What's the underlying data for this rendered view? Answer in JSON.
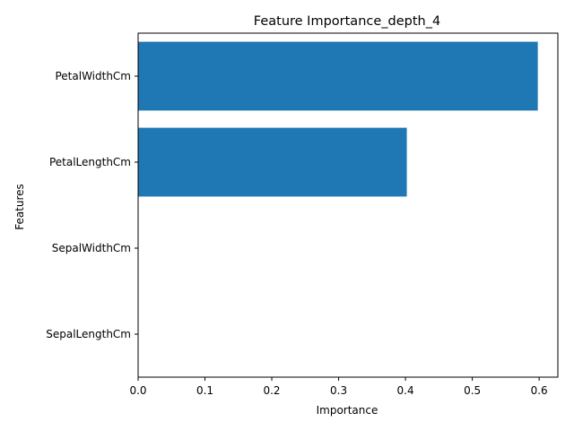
{
  "chart_data": {
    "type": "bar",
    "orientation": "horizontal",
    "title": "Feature Importance_depth_4",
    "xlabel": "Importance",
    "ylabel": "Features",
    "categories": [
      "SepalLengthCm",
      "SepalWidthCm",
      "PetalLengthCm",
      "PetalWidthCm"
    ],
    "values": [
      0.0,
      0.0,
      0.402,
      0.598
    ],
    "xlim": [
      0.0,
      0.628
    ],
    "xticks": [
      0.0,
      0.1,
      0.2,
      0.3,
      0.4,
      0.5,
      0.6
    ],
    "xtick_labels": [
      "0.0",
      "0.1",
      "0.2",
      "0.3",
      "0.4",
      "0.5",
      "0.6"
    ],
    "bar_color": "#1f77b4",
    "grid": false,
    "legend": "none"
  }
}
